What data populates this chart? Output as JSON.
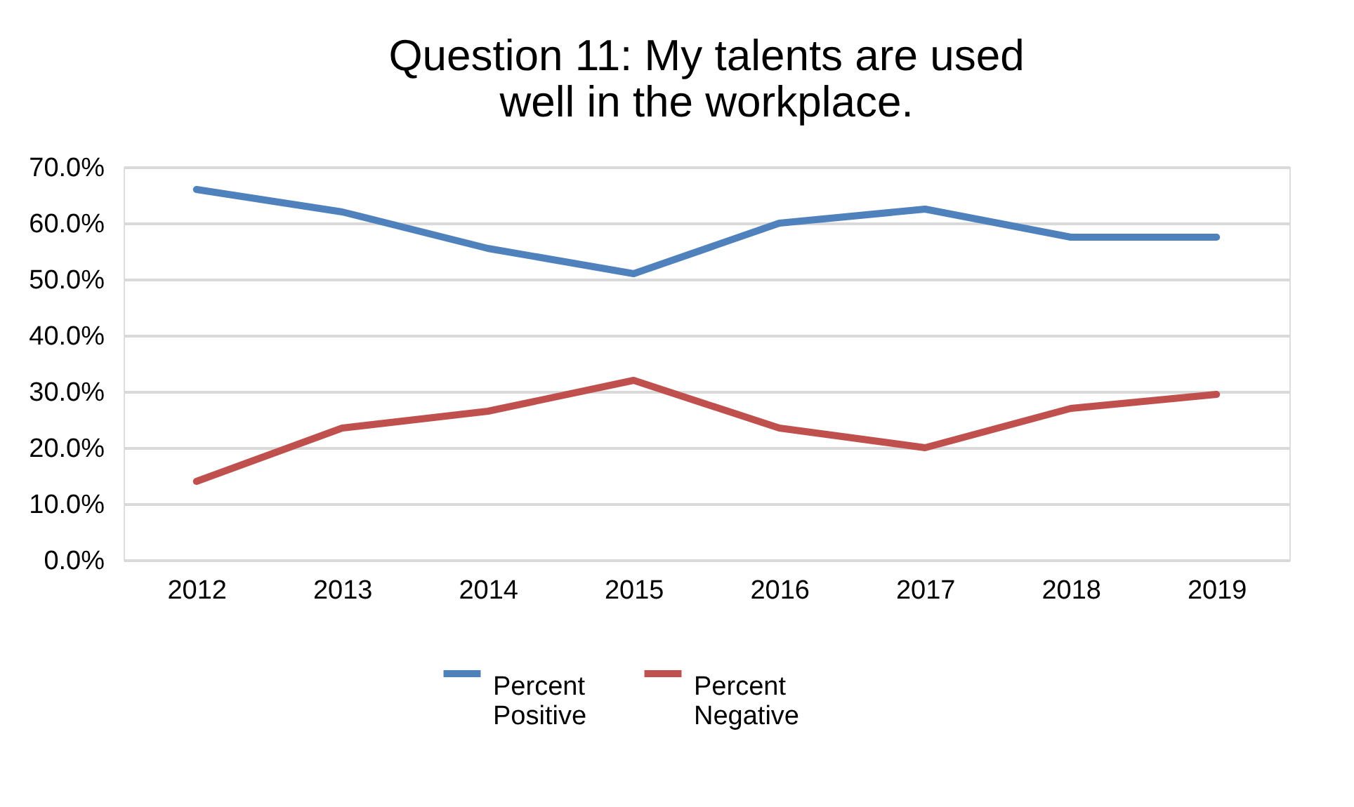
{
  "chart_data": {
    "type": "line",
    "title": "Question 11: My talents are used well in the workplace.",
    "categories": [
      "2012",
      "2013",
      "2014",
      "2015",
      "2016",
      "2017",
      "2018",
      "2019"
    ],
    "series": [
      {
        "name": "Percent Positive",
        "color": "#4f81bd",
        "values": [
          66.0,
          62.0,
          55.5,
          51.0,
          60.0,
          62.5,
          57.5,
          57.5
        ]
      },
      {
        "name": "Percent Negative",
        "color": "#c0504d",
        "values": [
          14.0,
          23.5,
          26.5,
          32.0,
          23.5,
          20.0,
          27.0,
          29.5
        ]
      }
    ],
    "ylim": [
      0,
      70
    ],
    "yticks": [
      {
        "value": 0,
        "label": "0.0%"
      },
      {
        "value": 10,
        "label": "10.0%"
      },
      {
        "value": 20,
        "label": "20.0%"
      },
      {
        "value": 30,
        "label": "30.0%"
      },
      {
        "value": 40,
        "label": "40.0%"
      },
      {
        "value": 50,
        "label": "50.0%"
      },
      {
        "value": 60,
        "label": "60.0%"
      },
      {
        "value": 70,
        "label": "70.0%"
      }
    ],
    "grid": "y",
    "legend": "bottom",
    "marker": "none",
    "line_style": "solid"
  }
}
